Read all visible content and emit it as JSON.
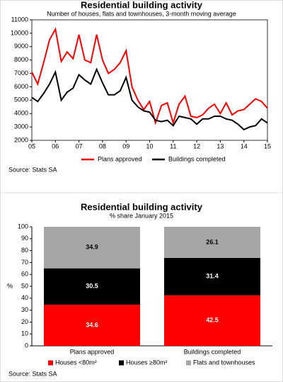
{
  "chart_data": [
    {
      "type": "line",
      "title": "Residential building activity",
      "subtitle": "Number of houses, flats and townhouses, 3-month moving average",
      "x": [
        5.0,
        5.25,
        5.5,
        5.75,
        6.0,
        6.25,
        6.5,
        6.75,
        7.0,
        7.25,
        7.5,
        7.75,
        8.0,
        8.25,
        8.5,
        8.75,
        9.0,
        9.25,
        9.5,
        9.75,
        10.0,
        10.25,
        10.5,
        10.75,
        11.0,
        11.25,
        11.5,
        11.75,
        12.0,
        12.25,
        12.5,
        12.75,
        13.0,
        13.25,
        13.5,
        13.75,
        14.0,
        14.25,
        14.5,
        14.75,
        15.0
      ],
      "xlim": [
        5,
        15
      ],
      "xticks": [
        {
          "value": 5,
          "label": "05"
        },
        {
          "value": 6,
          "label": "06"
        },
        {
          "value": 7,
          "label": "07"
        },
        {
          "value": 8,
          "label": "08"
        },
        {
          "value": 9,
          "label": "09"
        },
        10,
        11,
        12,
        13,
        14,
        15
      ],
      "ylim": [
        2000,
        11000
      ],
      "yticks": [
        2000,
        3000,
        4000,
        5000,
        6000,
        7000,
        8000,
        9000,
        10000,
        11000
      ],
      "series": [
        {
          "name": "Plans approved",
          "color": "#ff0000",
          "values": [
            7100,
            6200,
            7800,
            9500,
            10300,
            7900,
            8600,
            8100,
            9900,
            8000,
            7800,
            9900,
            8000,
            7000,
            7300,
            7800,
            8700,
            6000,
            5000,
            4300,
            4900,
            3300,
            4600,
            4800,
            3300,
            4700,
            5300,
            3800,
            3700,
            3900,
            4400,
            4700,
            4000,
            4800,
            3900,
            4200,
            4300,
            4700,
            5100,
            4900,
            4400
          ]
        },
        {
          "name": "Buildings completed",
          "color": "#000000",
          "values": [
            5200,
            4900,
            5500,
            6200,
            7100,
            5000,
            5600,
            5900,
            6900,
            6500,
            6200,
            7300,
            6300,
            5400,
            5400,
            5700,
            6700,
            5000,
            4500,
            4200,
            4100,
            3500,
            3400,
            3500,
            3100,
            3800,
            3700,
            3600,
            3200,
            3600,
            3600,
            3800,
            3800,
            3600,
            3500,
            3200,
            2800,
            3000,
            3100,
            3600,
            3300
          ]
        }
      ],
      "source": "Source: Stats SA"
    },
    {
      "type": "bar",
      "stacked": true,
      "title": "Residential building activity",
      "subtitle": "% share January 2015",
      "categories": [
        "Plans approved",
        "Buildings completed"
      ],
      "ylabel": "%",
      "ylim": [
        0,
        100
      ],
      "yticks": [
        0,
        10,
        20,
        30,
        40,
        50,
        60,
        70,
        80,
        90,
        100
      ],
      "series": [
        {
          "name": "Houses <80m²",
          "color": "#ff0000",
          "label_color": "#ffffff",
          "values": [
            34.6,
            42.5
          ]
        },
        {
          "name": "Houses ≥80m²",
          "color": "#000000",
          "label_color": "#ffffff",
          "values": [
            30.5,
            31.4
          ]
        },
        {
          "name": "Flats and townhouses",
          "color": "#a6a6a6",
          "label_color": "#000000",
          "values": [
            34.9,
            26.1
          ]
        }
      ],
      "source": "Source: Stats SA"
    }
  ]
}
